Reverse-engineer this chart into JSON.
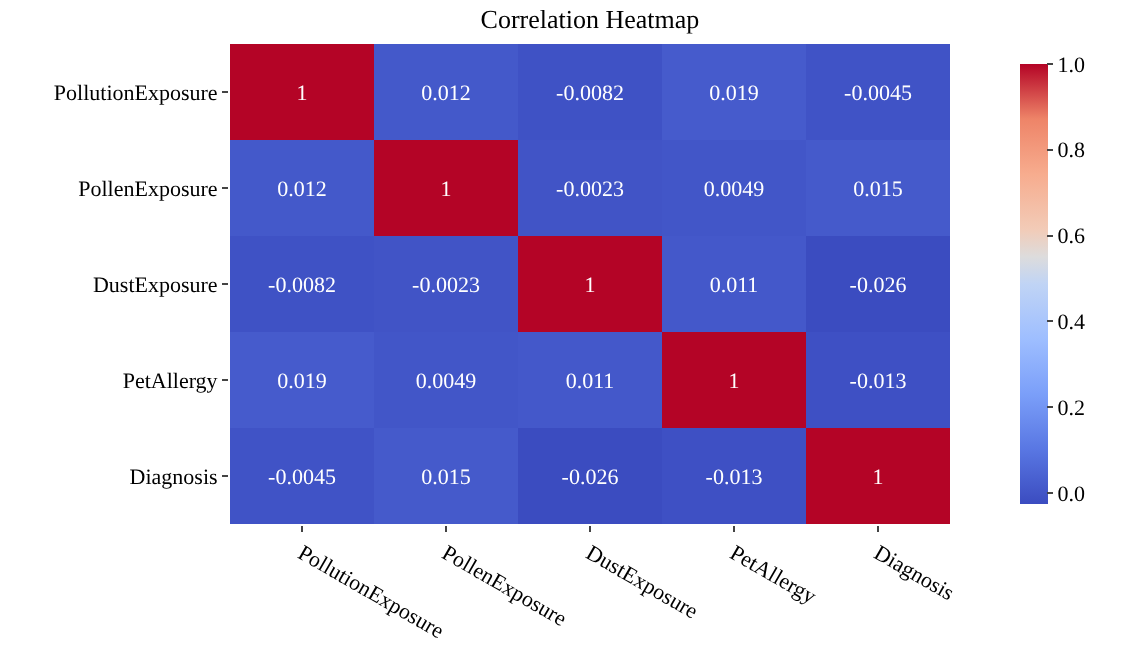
{
  "chart_data": {
    "type": "heatmap",
    "title": "Correlation Heatmap",
    "categories": [
      "PollutionExposure",
      "PollenExposure",
      "DustExposure",
      "PetAllergy",
      "Diagnosis"
    ],
    "y_categories": [
      "PollutionExposure",
      "PollenExposure",
      "DustExposure",
      "PetAllergy",
      "Diagnosis"
    ],
    "cells": [
      [
        1,
        0.012,
        -0.0082,
        0.019,
        -0.0045
      ],
      [
        0.012,
        1,
        -0.0023,
        0.0049,
        0.015
      ],
      [
        -0.0082,
        -0.0023,
        1,
        0.011,
        -0.026
      ],
      [
        0.019,
        0.0049,
        0.011,
        1,
        -0.013
      ],
      [
        -0.0045,
        0.015,
        -0.026,
        -0.013,
        1
      ]
    ],
    "data_labels": true,
    "clim": [
      -0.026,
      1
    ],
    "cticks": [
      {
        "value": 0,
        "label": "0.0"
      },
      0.2,
      0.4,
      0.6,
      0.8,
      {
        "value": 1,
        "label": "1.0"
      }
    ]
  }
}
